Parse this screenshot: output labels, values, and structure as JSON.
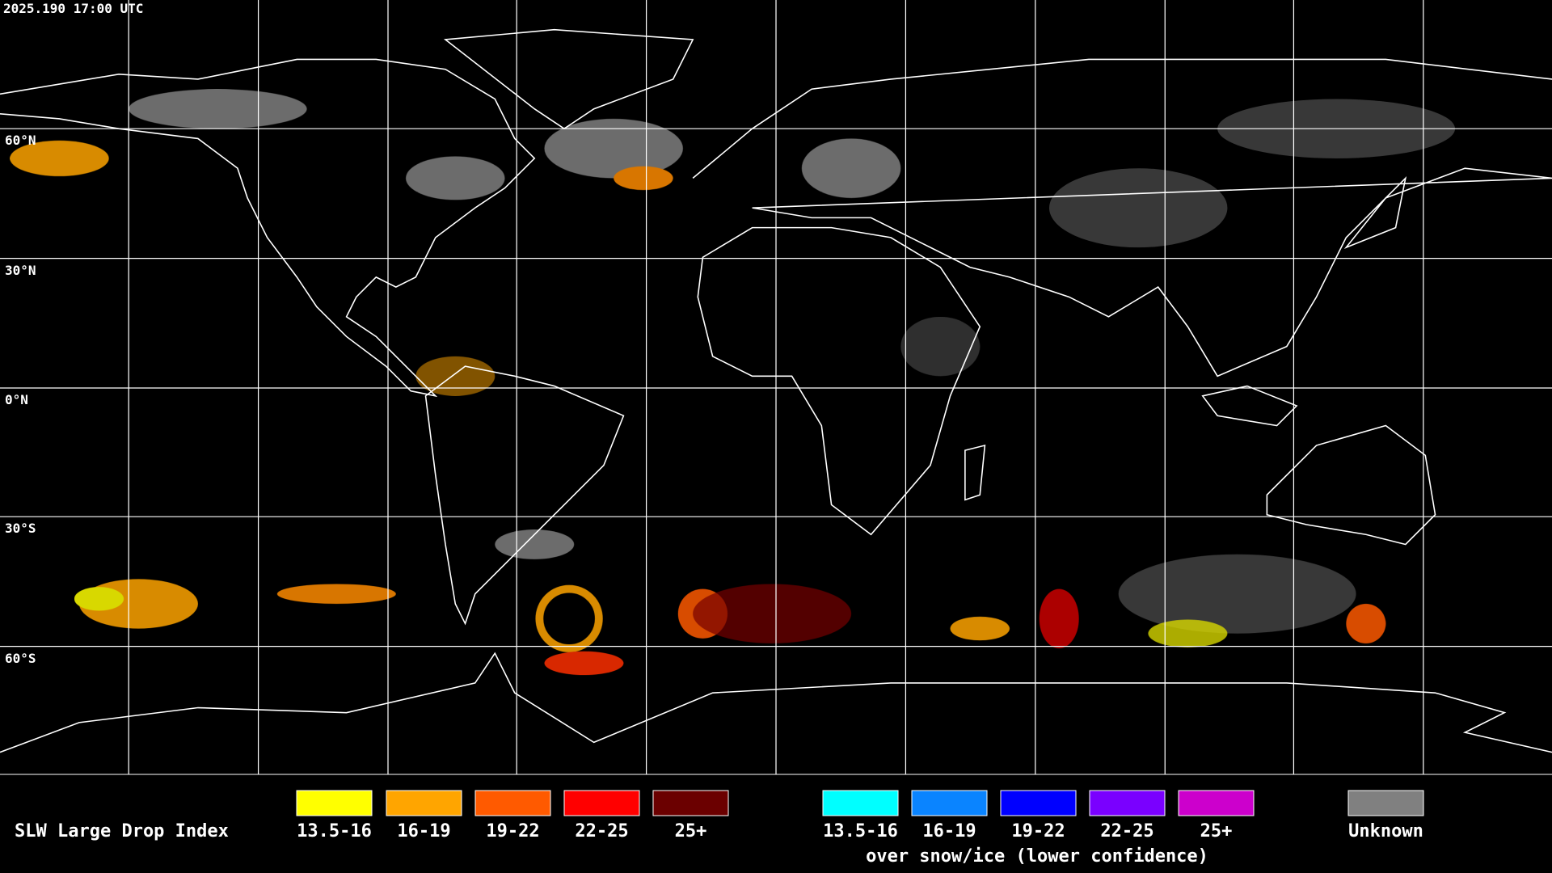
{
  "timestamp": "2025.190 17:00 UTC",
  "latitude_labels": [
    "60°N",
    "30°N",
    "0°N",
    "30°S",
    "60°S"
  ],
  "legend": {
    "title": "SLW Large Drop Index",
    "items": [
      {
        "label": "13.5-16",
        "color": "#ffff00"
      },
      {
        "label": "16-19",
        "color": "#ffa500"
      },
      {
        "label": "19-22",
        "color": "#ff5a00"
      },
      {
        "label": "22-25",
        "color": "#ff0000"
      },
      {
        "label": "25+",
        "color": "#6b0000"
      }
    ],
    "ice_items": [
      {
        "label": "13.5-16",
        "color": "#00ffff"
      },
      {
        "label": "16-19",
        "color": "#0a84ff"
      },
      {
        "label": "19-22",
        "color": "#0000ff"
      },
      {
        "label": "22-25",
        "color": "#7a00ff"
      },
      {
        "label": "25+",
        "color": "#cc00cc"
      }
    ],
    "ice_caption": "over snow/ice (lower confidence)",
    "unknown": {
      "label": "Unknown",
      "color": "#808080"
    }
  }
}
